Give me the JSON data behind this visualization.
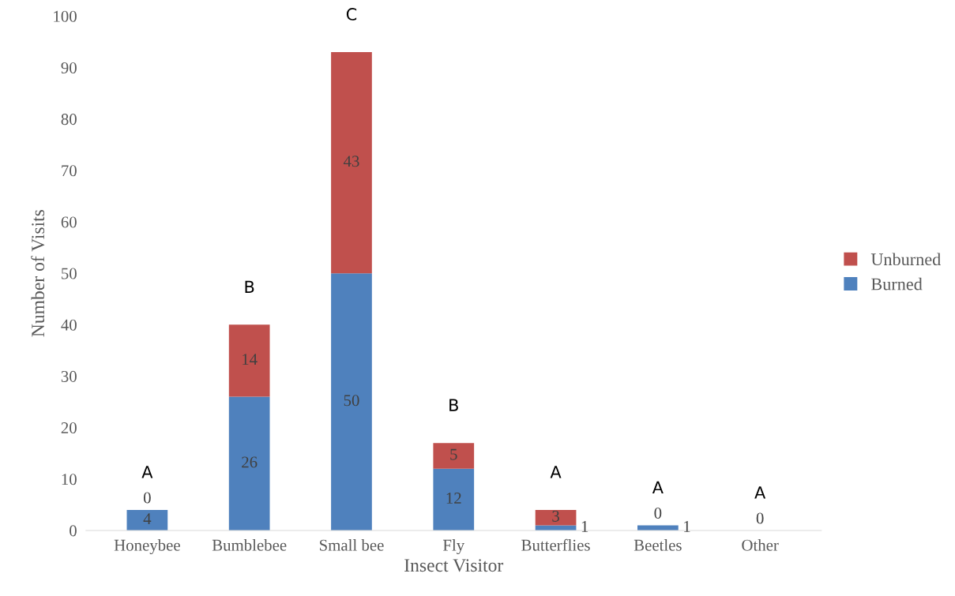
{
  "chart_data": {
    "type": "bar",
    "stacked": true,
    "xlabel": "Insect Visitor",
    "ylabel": "Number of Visits",
    "categories": [
      "Honeybee",
      "Bumblebee",
      "Small bee",
      "Fly",
      "Butterflies",
      "Beetles",
      "Other"
    ],
    "series": [
      {
        "name": "Burned",
        "color": "#4f81bd",
        "values": [
          4,
          26,
          50,
          12,
          1,
          1,
          0
        ],
        "value_labels": [
          "4",
          "26",
          "50",
          "12",
          "1",
          "1",
          "0"
        ]
      },
      {
        "name": "Unburned",
        "color": "#c0504d",
        "values": [
          0,
          14,
          43,
          5,
          3,
          0,
          0
        ],
        "value_labels": [
          "0",
          "14",
          "43",
          "5",
          "3",
          "0",
          null
        ]
      }
    ],
    "ylim": [
      0,
      100
    ],
    "yticks": [
      0,
      10,
      20,
      30,
      40,
      50,
      60,
      70,
      80,
      90,
      100
    ],
    "grid": false,
    "legend": "right",
    "annotations": [
      "A",
      "B",
      "C",
      "B",
      "A",
      "A",
      "A"
    ]
  }
}
